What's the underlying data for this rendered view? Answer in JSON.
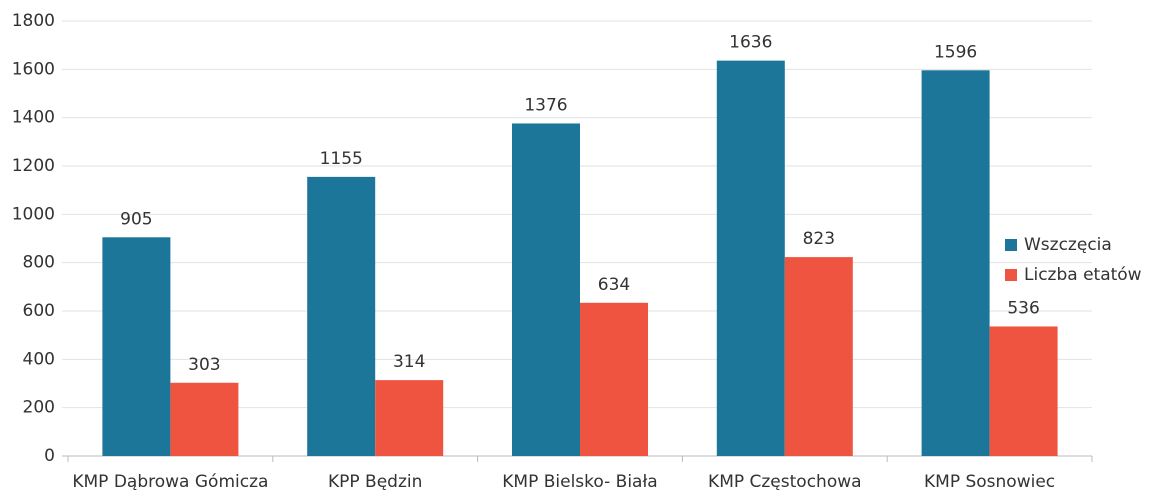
{
  "chart_data": {
    "type": "bar",
    "categories": [
      "KMP Dąbrowa Gómicza",
      "KPP Będzin",
      "KMP Bielsko- Biała",
      "KMP Częstochowa",
      "KMP Sosnowiec"
    ],
    "series": [
      {
        "name": "Wszczęcia",
        "color": "#1c7699",
        "values": [
          905,
          1155,
          1376,
          1636,
          1596
        ]
      },
      {
        "name": "Liczba etatów",
        "color": "#ef5440",
        "values": [
          303,
          314,
          634,
          823,
          536
        ]
      }
    ],
    "ylim": [
      0,
      1800
    ],
    "yticks": [
      0,
      200,
      400,
      600,
      800,
      1000,
      1200,
      1400,
      1600,
      1800
    ],
    "grid": true,
    "legend": "right"
  }
}
